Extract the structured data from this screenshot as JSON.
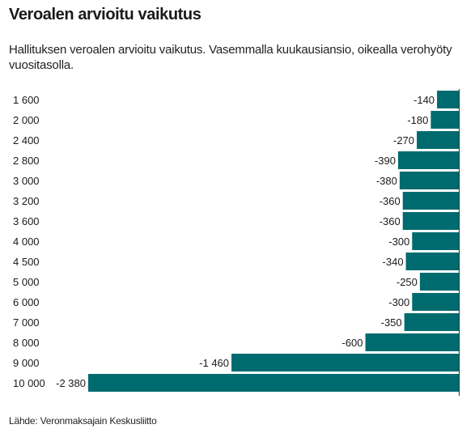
{
  "title": "Veroalen arvioitu vaikutus",
  "subtitle": "Hallituksen veroalen arvioitu vaikutus. Vasemmalla kuukausiansio, oikealla verohyöty vuositasolla.",
  "source": "Lähde: Veronmaksajain Keskusliitto",
  "colors": {
    "bar": "#006b6f",
    "axis": "#333333"
  },
  "chart_data": {
    "type": "bar",
    "orientation": "horizontal",
    "title": "Veroalen arvioitu vaikutus",
    "categories": [
      "1 600",
      "2 000",
      "2 400",
      "2 800",
      "3 000",
      "3 200",
      "3 600",
      "4 000",
      "4 500",
      "5 000",
      "6 000",
      "7 000",
      "8 000",
      "9 000",
      "10 000"
    ],
    "values": [
      -140,
      -180,
      -270,
      -390,
      -380,
      -360,
      -360,
      -300,
      -340,
      -250,
      -300,
      -350,
      -600,
      -1460,
      -2380
    ],
    "value_labels": [
      "-140",
      "-180",
      "-270",
      "-390",
      "-380",
      "-360",
      "-360",
      "-300",
      "-340",
      "-250",
      "-300",
      "-350",
      "-600",
      "-1 460",
      "-2 380"
    ],
    "xlim": [
      -2380,
      0
    ],
    "grid": false,
    "legend": "none"
  }
}
